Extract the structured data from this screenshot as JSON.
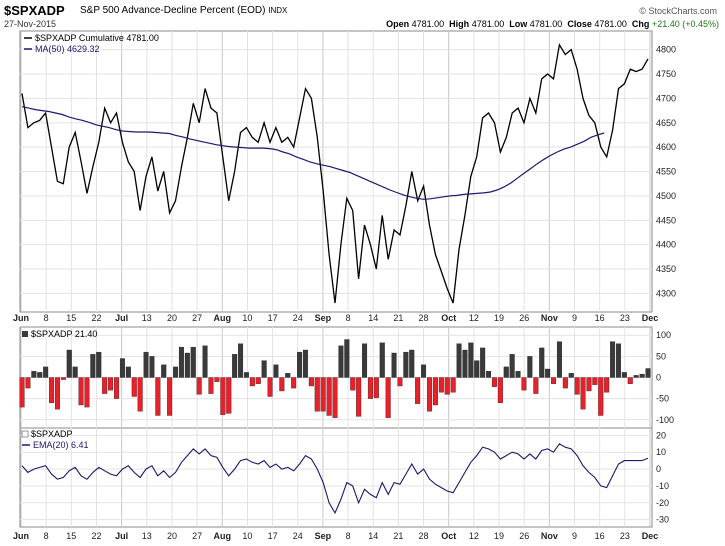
{
  "header": {
    "symbol": "$SPXADP",
    "name": "S&P 500 Advance-Decline Percent (EOD)",
    "exchange": "INDX",
    "date": "27-Nov-2015",
    "brand": "© StockCharts.com",
    "open_label": "Open",
    "open": "4781.00",
    "high_label": "High",
    "high": "4781.00",
    "low_label": "Low",
    "low": "4781.00",
    "close_label": "Close",
    "close": "4781.00",
    "chg_label": "Chg",
    "chg": "+21.40 (+0.45%)"
  },
  "x_axis_labels": [
    "Jun",
    "8",
    "15",
    "22",
    "Jul",
    "13",
    "20",
    "27",
    "Aug",
    "10",
    "17",
    "24",
    "Sep",
    "8",
    "14",
    "21",
    "28",
    "Oct",
    "12",
    "19",
    "26",
    "Nov",
    "9",
    "16",
    "23",
    "Dec"
  ],
  "chart_data": [
    {
      "type": "line",
      "panel": "cumulative",
      "legend": [
        "$SPXADP Cumulative 4781.00",
        "MA(50) 4629.32"
      ],
      "ylim": [
        4270,
        4830
      ],
      "yticks": [
        4300,
        4350,
        4400,
        4450,
        4500,
        4550,
        4600,
        4650,
        4700,
        4750,
        4800
      ],
      "colors": {
        "price": "#000000",
        "ma": "#1a1a6e"
      },
      "series": [
        {
          "name": "$SPXADP Cumulative",
          "values": [
            4710,
            4640,
            4650,
            4655,
            4670,
            4600,
            4530,
            4525,
            4600,
            4630,
            4570,
            4505,
            4560,
            4610,
            4680,
            4650,
            4670,
            4610,
            4570,
            4550,
            4470,
            4540,
            4580,
            4510,
            4550,
            4465,
            4490,
            4560,
            4620,
            4690,
            4650,
            4720,
            4680,
            4670,
            4580,
            4490,
            4550,
            4630,
            4640,
            4620,
            4610,
            4650,
            4610,
            4640,
            4610,
            4620,
            4600,
            4660,
            4720,
            4700,
            4620,
            4510,
            4380,
            4280,
            4400,
            4495,
            4470,
            4330,
            4440,
            4400,
            4350,
            4460,
            4370,
            4430,
            4420,
            4480,
            4550,
            4490,
            4520,
            4440,
            4380,
            4345,
            4310,
            4280,
            4390,
            4460,
            4540,
            4580,
            4660,
            4670,
            4650,
            4590,
            4620,
            4670,
            4680,
            4650,
            4700,
            4670,
            4740,
            4750,
            4740,
            4810,
            4790,
            4800,
            4760,
            4700,
            4665,
            4650,
            4600,
            4580,
            4635,
            4720,
            4730,
            4760,
            4755,
            4760,
            4781
          ]
        },
        {
          "name": "MA(50)",
          "values": [
            4683,
            4680,
            4677,
            4675,
            4673,
            4670,
            4667,
            4662,
            4658,
            4655,
            4651,
            4646,
            4643,
            4640,
            4636,
            4633,
            4632,
            4631,
            4631,
            4631,
            4630,
            4629,
            4628,
            4624,
            4621,
            4617,
            4614,
            4611,
            4608,
            4605,
            4603,
            4601,
            4600,
            4599,
            4598,
            4598,
            4598,
            4597,
            4595,
            4590,
            4586,
            4580,
            4575,
            4570,
            4566,
            4563,
            4560,
            4556,
            4552,
            4548,
            4542,
            4536,
            4530,
            4524,
            4518,
            4512,
            4507,
            4502,
            4498,
            4495,
            4493,
            4494,
            4496,
            4498,
            4500,
            4501,
            4503,
            4504,
            4505,
            4506,
            4508,
            4512,
            4518,
            4526,
            4536,
            4546,
            4556,
            4566,
            4575,
            4583,
            4590,
            4596,
            4600,
            4606,
            4612,
            4620,
            4625,
            4629
          ]
        }
      ]
    },
    {
      "type": "bar",
      "panel": "daily",
      "legend": [
        "$SPXADP 21.40"
      ],
      "ylim": [
        -110,
        110
      ],
      "yticks": [
        -100,
        -50,
        0,
        50,
        100
      ],
      "colors": {
        "up": "#3a3a3a",
        "down": "#e8202a"
      },
      "values": [
        -70,
        -25,
        15,
        12,
        25,
        -60,
        -75,
        -5,
        65,
        25,
        -65,
        -70,
        55,
        60,
        -38,
        -30,
        -50,
        45,
        25,
        -45,
        -80,
        60,
        50,
        -90,
        30,
        -90,
        25,
        72,
        58,
        72,
        -40,
        75,
        -38,
        -10,
        -88,
        -85,
        55,
        80,
        12,
        -20,
        -15,
        40,
        -45,
        30,
        -32,
        10,
        -25,
        60,
        65,
        -20,
        -80,
        -80,
        -90,
        -95,
        75,
        90,
        -30,
        -92,
        80,
        -50,
        -48,
        82,
        -95,
        58,
        -20,
        60,
        65,
        -62,
        30,
        -80,
        -65,
        -35,
        -40,
        -35,
        80,
        65,
        82,
        40,
        70,
        15,
        -22,
        -60,
        25,
        55,
        15,
        -30,
        50,
        -38,
        70,
        20,
        -15,
        85,
        -25,
        10,
        -40,
        -75,
        -32,
        -17,
        -90,
        -35,
        85,
        80,
        12,
        -15,
        5,
        8,
        21.4
      ]
    },
    {
      "type": "line",
      "panel": "ema",
      "legend": [
        "$SPXADP",
        "EMA(20) 6.41"
      ],
      "ylim": [
        -32,
        22
      ],
      "yticks": [
        -30,
        -20,
        -10,
        0,
        10,
        20
      ],
      "colors": {
        "ema": "#1a1a6e"
      },
      "series": [
        {
          "name": "EMA(20)",
          "values": [
            2,
            -2,
            0,
            1,
            2,
            -3,
            -6,
            -5,
            -1,
            1,
            -4,
            -6,
            -2,
            1,
            -1,
            -3,
            -4,
            0,
            2,
            -2,
            -5,
            0,
            2,
            -4,
            -1,
            -5,
            -2,
            4,
            8,
            12,
            9,
            12,
            8,
            7,
            1,
            -4,
            0,
            5,
            6,
            4,
            3,
            5,
            1,
            3,
            0,
            1,
            -1,
            3,
            8,
            6,
            0,
            -8,
            -20,
            -26,
            -18,
            -8,
            -10,
            -20,
            -12,
            -15,
            -17,
            -8,
            -15,
            -8,
            -9,
            -3,
            3,
            -3,
            0,
            -6,
            -9,
            -11,
            -13,
            -14,
            -8,
            -2,
            4,
            8,
            13,
            12,
            10,
            6,
            8,
            10,
            9,
            6,
            9,
            6,
            11,
            12,
            10,
            15,
            13,
            12,
            8,
            2,
            -2,
            -5,
            -10,
            -11,
            -4,
            3,
            5,
            5,
            5,
            5,
            6.41
          ]
        }
      ]
    }
  ]
}
